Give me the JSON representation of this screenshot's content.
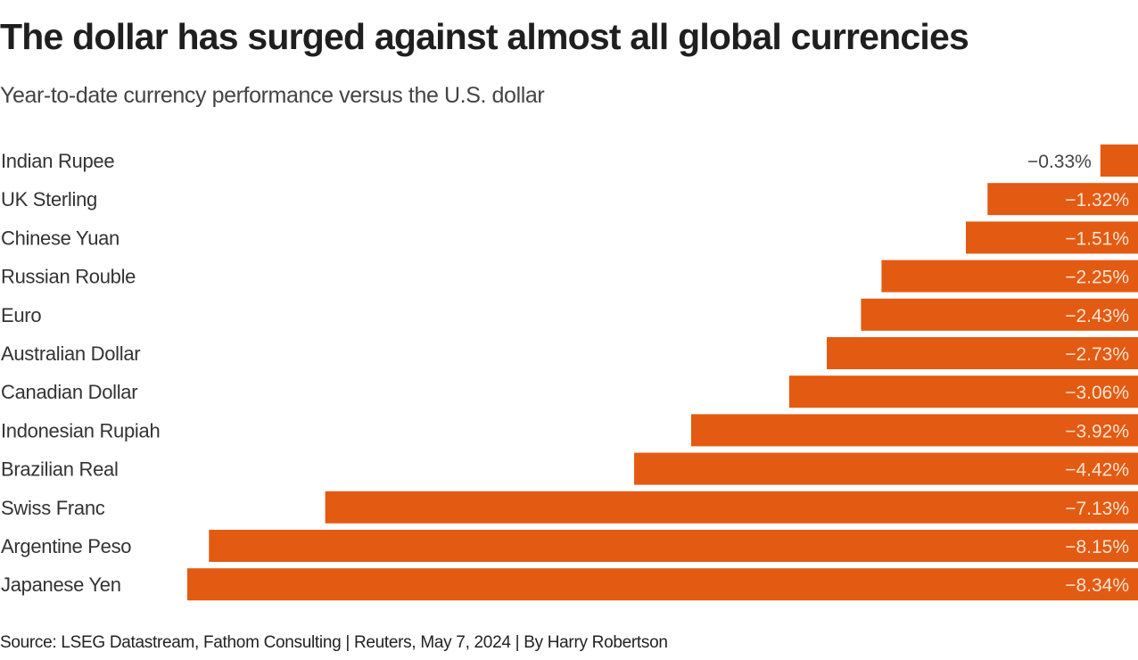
{
  "title": "The dollar has surged against almost all global currencies",
  "subtitle": "Year-to-date currency performance versus the U.S. dollar",
  "source": "Source: LSEG Datastream, Fathom Consulting | Reuters, May 7, 2024 | By Harry Robertson",
  "colors": {
    "bar": "#e35a12",
    "label_inside": "#fbe3d3",
    "label_outside": "#444444"
  },
  "chart_data": {
    "type": "bar",
    "orientation": "horizontal",
    "title": "The dollar has surged against almost all global currencies",
    "subtitle": "Year-to-date currency performance versus the U.S. dollar",
    "xlabel": "",
    "ylabel": "",
    "unit": "%",
    "grid": false,
    "xlim": [
      -8.34,
      0
    ],
    "categories": [
      "Indian Rupee",
      "UK Sterling",
      "Chinese Yuan",
      "Russian Rouble",
      "Euro",
      "Australian Dollar",
      "Canadian Dollar",
      "Indonesian Rupiah",
      "Brazilian Real",
      "Swiss Franc",
      "Argentine Peso",
      "Japanese Yen"
    ],
    "values": [
      -0.33,
      -1.32,
      -1.51,
      -2.25,
      -2.43,
      -2.73,
      -3.06,
      -3.92,
      -4.42,
      -7.13,
      -8.15,
      -8.34
    ],
    "value_labels": [
      "−0.33%",
      "−1.32%",
      "−1.51%",
      "−2.25%",
      "−2.43%",
      "−2.73%",
      "−3.06%",
      "−3.92%",
      "−4.42%",
      "−7.13%",
      "−8.15%",
      "−8.34%"
    ]
  }
}
